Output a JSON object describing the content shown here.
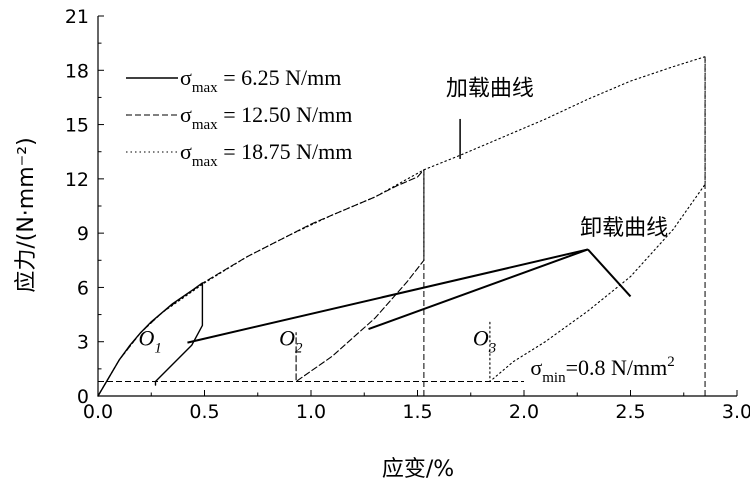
{
  "chart_data": {
    "type": "line",
    "xlabel": "应变/%",
    "ylabel": "应力/(N·mm⁻²)",
    "xlim": [
      0,
      3.0
    ],
    "ylim": [
      0,
      21
    ],
    "xticks": [
      "0.0",
      "0.5",
      "1.0",
      "1.5",
      "2.0",
      "2.5",
      "3.0"
    ],
    "yticks": [
      "0",
      "3",
      "6",
      "9",
      "12",
      "15",
      "18",
      "21"
    ],
    "legend": {
      "placement": "top-left",
      "entries": [
        {
          "symbol": "σ",
          "sub": "max",
          "value": " = 6.25 N/mm",
          "style": "solid"
        },
        {
          "symbol": "σ",
          "sub": "max",
          "value": " = 12.50 N/mm",
          "style": "dashed"
        },
        {
          "symbol": "σ",
          "sub": "max",
          "value": " = 18.75 N/mm",
          "style": "dotted"
        }
      ]
    },
    "series": [
      {
        "style": "solid",
        "x": [
          0.0,
          0.05,
          0.1,
          0.15,
          0.2,
          0.25,
          0.3,
          0.35,
          0.4,
          0.45,
          0.49,
          0.49,
          0.44,
          0.27,
          0.27
        ],
        "y": [
          0.0,
          1.0,
          2.0,
          2.8,
          3.5,
          4.1,
          4.6,
          5.1,
          5.5,
          5.9,
          6.25,
          3.9,
          2.8,
          0.8,
          0.6
        ]
      },
      {
        "style": "dashed",
        "x": [
          0.0,
          0.1,
          0.2,
          0.3,
          0.4,
          0.5,
          0.6,
          0.7,
          0.8,
          0.9,
          1.0,
          1.1,
          1.2,
          1.3,
          1.4,
          1.5,
          1.53,
          1.53,
          1.45,
          1.3,
          1.1,
          0.93,
          0.93
        ],
        "y": [
          0.0,
          2.0,
          3.5,
          4.6,
          5.5,
          6.3,
          7.0,
          7.7,
          8.3,
          8.9,
          9.5,
          10.0,
          10.5,
          11.0,
          11.6,
          12.1,
          12.5,
          7.5,
          6.3,
          4.3,
          2.2,
          0.8,
          3.5
        ]
      },
      {
        "style": "dotted",
        "x": [
          0.0,
          0.1,
          0.2,
          0.3,
          0.5,
          0.7,
          0.9,
          1.1,
          1.3,
          1.53,
          1.7,
          1.9,
          2.1,
          2.3,
          2.5,
          2.7,
          2.85,
          2.85,
          2.7,
          2.5,
          2.3,
          2.1,
          1.95,
          1.84,
          1.84
        ],
        "y": [
          0.0,
          2.0,
          3.5,
          4.6,
          6.25,
          7.7,
          8.9,
          10.0,
          11.0,
          12.5,
          13.3,
          14.3,
          15.3,
          16.4,
          17.4,
          18.2,
          18.75,
          11.7,
          9.2,
          6.6,
          4.7,
          3.0,
          1.9,
          0.8,
          4.2
        ]
      }
    ],
    "reference_lines": [
      {
        "orientation": "horizontal",
        "value": 0.8,
        "x_start": 0.0,
        "x_end": 2.0,
        "style": "dashed"
      },
      {
        "orientation": "vertical",
        "value": 1.53,
        "style": "dashed",
        "y_end": 12.5
      },
      {
        "orientation": "vertical",
        "value": 2.85,
        "style": "dashed",
        "y_end": 18.75
      }
    ],
    "points": [
      {
        "label": "O",
        "sub": "1",
        "x": 0.27,
        "y": 0.8
      },
      {
        "label": "O",
        "sub": "2",
        "x": 0.93,
        "y": 0.8
      },
      {
        "label": "O",
        "sub": "3",
        "x": 1.84,
        "y": 0.8
      }
    ],
    "annotations": {
      "loading_curve": {
        "text": "加载曲线",
        "text_x": 1.84,
        "text_y": 16.6,
        "to_x": 1.7,
        "to_y": 13.1
      },
      "unloading_curve": {
        "text": "卸载曲线",
        "text_x": 2.47,
        "text_y": 8.9,
        "junction_x": 2.3,
        "junction_y": 8.1,
        "pointers": [
          {
            "x": 0.42,
            "y": 2.95
          },
          {
            "x": 1.27,
            "y": 3.7
          },
          {
            "x": 2.5,
            "y": 5.5
          }
        ]
      },
      "sigma_min": {
        "symbol": "σ",
        "sub": "min",
        "value": "=0.8 N/mm",
        "sup": "2",
        "x": 2.03,
        "y": 1.15
      }
    }
  }
}
